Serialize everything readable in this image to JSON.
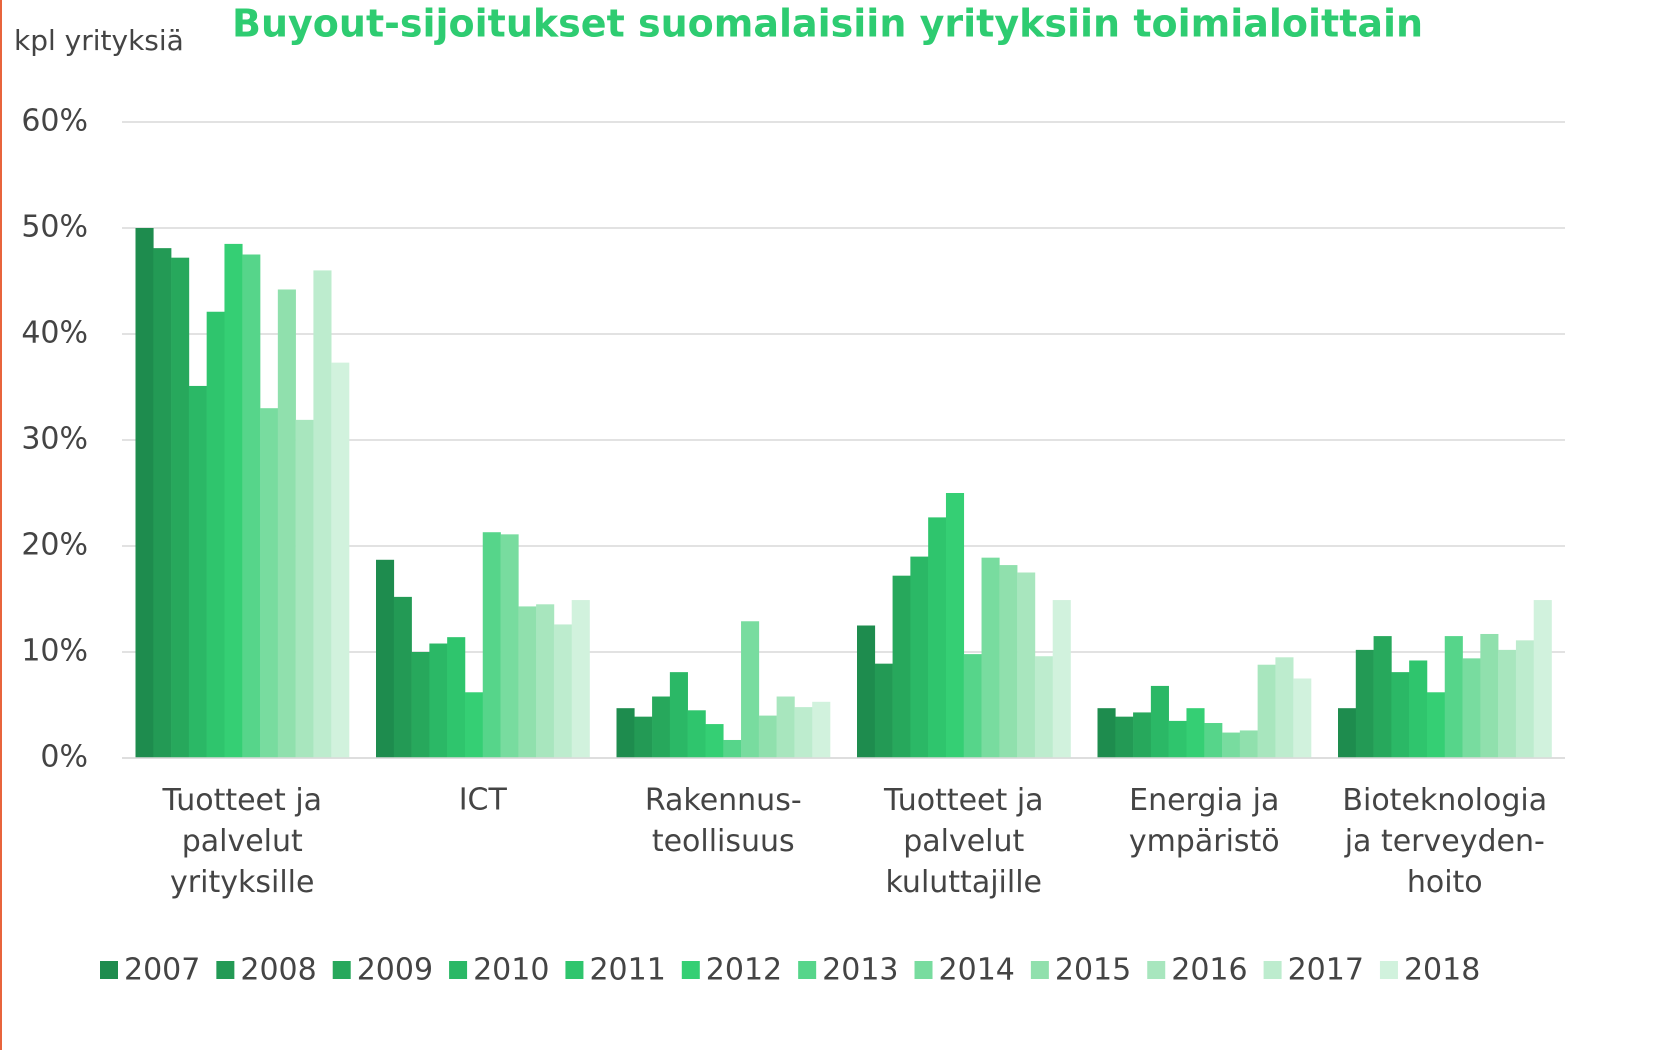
{
  "chart_data": {
    "type": "bar",
    "title": "Buyout-sijoitukset suomalaisiin yrityksiin toimialoittain",
    "y_label": "kpl yrityksiä",
    "categories": [
      "Tuotteet ja\npalvelut\nyrityksille",
      "ICT",
      "Rakennus-\nteollisuus",
      "Tuotteet ja\npalvelut\nkuluttajille",
      "Energia ja\nympäristö",
      "Bioteknologia\nja terveyden-\nhoito"
    ],
    "series": [
      {
        "name": "2007",
        "color": "#1e8c4e",
        "values": [
          50,
          18.7,
          4.7,
          12.5,
          4.7,
          4.7
        ]
      },
      {
        "name": "2008",
        "color": "#239a55",
        "values": [
          48.1,
          15.2,
          3.9,
          8.9,
          3.9,
          10.2
        ]
      },
      {
        "name": "2009",
        "color": "#27a85c",
        "values": [
          47.2,
          10,
          5.8,
          17.2,
          4.3,
          11.5
        ]
      },
      {
        "name": "2010",
        "color": "#2bb866",
        "values": [
          35.1,
          10.8,
          8.1,
          19,
          6.8,
          8.1
        ]
      },
      {
        "name": "2011",
        "color": "#2fc56d",
        "values": [
          42.1,
          11.4,
          4.5,
          22.7,
          3.5,
          9.2
        ]
      },
      {
        "name": "2012",
        "color": "#35cf74",
        "values": [
          48.5,
          6.2,
          3.2,
          25,
          4.7,
          6.2
        ]
      },
      {
        "name": "2013",
        "color": "#56d58a",
        "values": [
          47.5,
          21.3,
          1.7,
          9.8,
          3.3,
          11.5
        ]
      },
      {
        "name": "2014",
        "color": "#78dc9f",
        "values": [
          33,
          21.1,
          12.9,
          18.9,
          2.4,
          9.4
        ]
      },
      {
        "name": "2015",
        "color": "#90e0ad",
        "values": [
          44.2,
          14.3,
          4.0,
          18.2,
          2.6,
          11.7
        ]
      },
      {
        "name": "2016",
        "color": "#a8e6be",
        "values": [
          31.9,
          14.5,
          5.8,
          17.5,
          8.8,
          10.2
        ]
      },
      {
        "name": "2017",
        "color": "#bdecce",
        "values": [
          46,
          12.6,
          4.8,
          9.6,
          9.5,
          11.1
        ]
      },
      {
        "name": "2018",
        "color": "#d1f2dd",
        "values": [
          37.3,
          14.9,
          5.3,
          14.9,
          7.5,
          14.9
        ]
      }
    ],
    "ylim": [
      0,
      60
    ],
    "yticks": [
      {
        "value": 0,
        "label": "0%"
      },
      {
        "value": 10,
        "label": "10%"
      },
      {
        "value": 20,
        "label": "20%"
      },
      {
        "value": 30,
        "label": "30%"
      },
      {
        "value": 40,
        "label": "40%"
      },
      {
        "value": 50,
        "label": "50%"
      },
      {
        "value": 60,
        "label": "60%"
      }
    ],
    "grid": true
  }
}
